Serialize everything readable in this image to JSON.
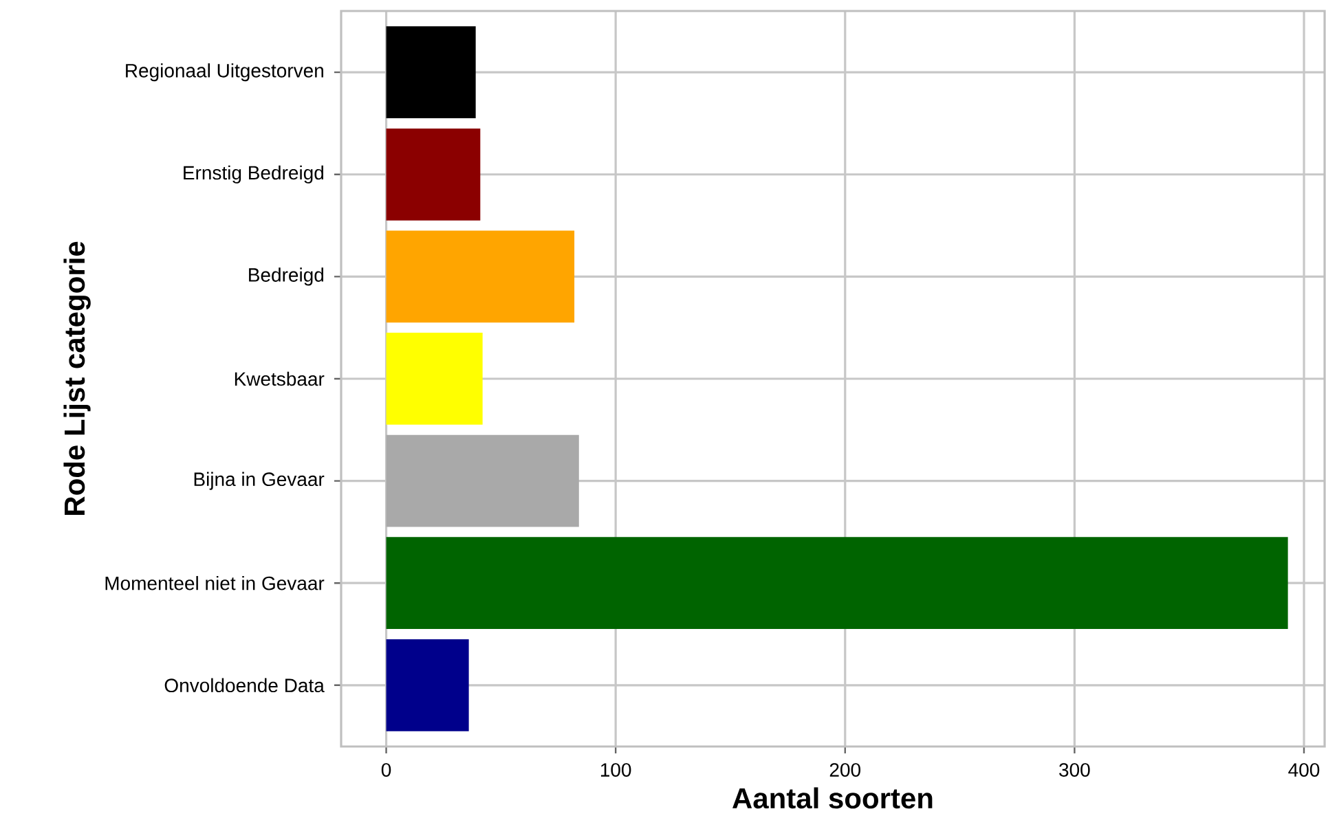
{
  "chart_data": {
    "type": "bar",
    "orientation": "horizontal",
    "categories": [
      "Regionaal Uitgestorven",
      "Ernstig Bedreigd",
      "Bedreigd",
      "Kwetsbaar",
      "Bijna in Gevaar",
      "Momenteel niet in Gevaar",
      "Onvoldoende Data"
    ],
    "values": [
      39,
      41,
      82,
      42,
      84,
      393,
      36
    ],
    "colors": [
      "#000000",
      "#8b0000",
      "#ffa500",
      "#ffff00",
      "#a9a9a9",
      "#006400",
      "#00008b"
    ],
    "xlabel": "Aantal soorten",
    "ylabel": "Rode Lijst categorie",
    "xlim": [
      -19.65,
      409
    ],
    "xticks": [
      0,
      100,
      200,
      300,
      400
    ],
    "grid": true
  }
}
